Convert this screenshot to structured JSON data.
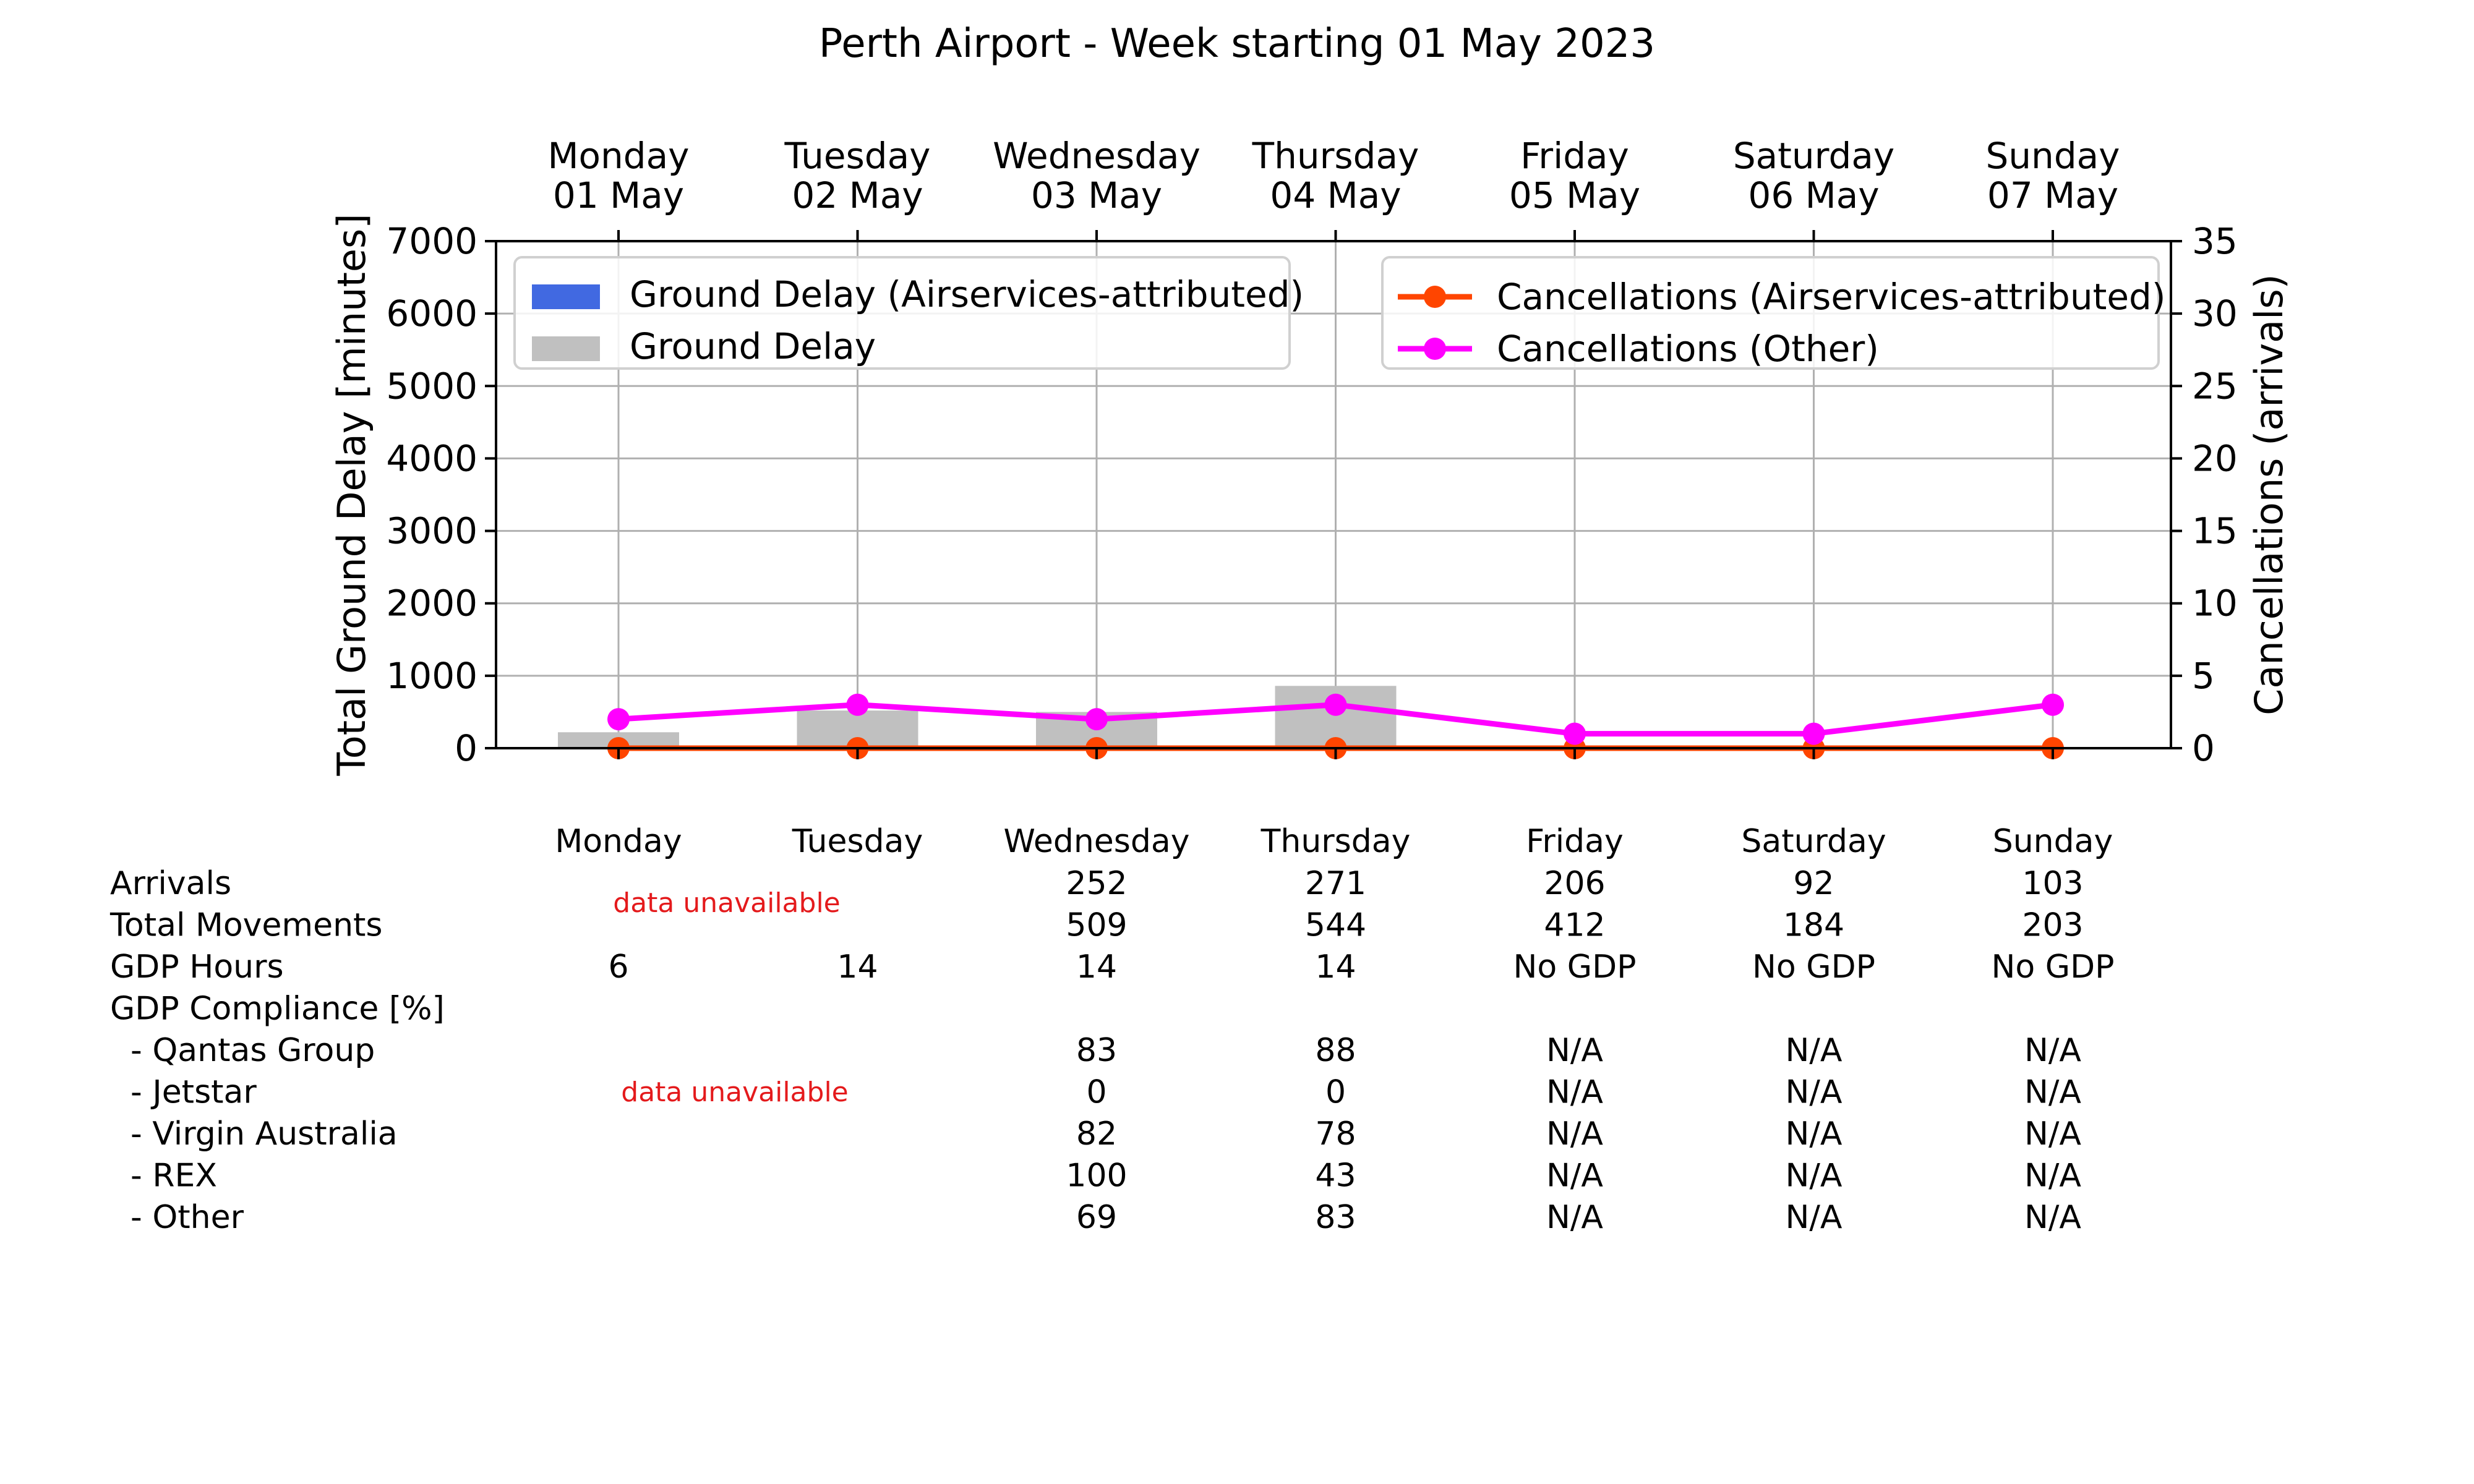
{
  "chart_data": {
    "type": "bar",
    "title": "Perth Airport - Week starting 01 May 2023",
    "categories": [
      "Monday\n01 May",
      "Tuesday\n02 May",
      "Wednesday\n03 May",
      "Thursday\n04 May",
      "Friday\n05 May",
      "Saturday\n06 May",
      "Sunday\n07 May"
    ],
    "ylabel": "Total Ground Delay [minutes]",
    "ylim": [
      0,
      7000
    ],
    "yticks": [
      0,
      1000,
      2000,
      3000,
      4000,
      5000,
      6000,
      7000
    ],
    "y2label": "Cancellations (arrivals)",
    "y2lim": [
      0,
      35
    ],
    "y2ticks": [
      0,
      5,
      10,
      15,
      20,
      25,
      30,
      35
    ],
    "grid": true,
    "series": [
      {
        "name": "Ground Delay (Airservices-attributed)",
        "kind": "bar",
        "axis": "left",
        "color": "#4169e1",
        "values": [
          0,
          0,
          0,
          0,
          0,
          0,
          0
        ]
      },
      {
        "name": "Ground Delay",
        "kind": "bar",
        "axis": "left",
        "color": "#c0c0c0",
        "values": [
          220,
          520,
          500,
          860,
          0,
          0,
          0
        ]
      },
      {
        "name": "Cancellations (Airservices-attributed)",
        "kind": "line",
        "axis": "right",
        "color": "#ff4500",
        "values": [
          0,
          0,
          0,
          0,
          0,
          0,
          0
        ]
      },
      {
        "name": "Cancellations (Other)",
        "kind": "line",
        "axis": "right",
        "color": "#ff00ff",
        "values": [
          2,
          3,
          2,
          3,
          1,
          1,
          3
        ]
      }
    ],
    "legends": {
      "left": "top-left",
      "right": "top-right"
    }
  },
  "table": {
    "days": [
      "Monday",
      "Tuesday",
      "Wednesday",
      "Thursday",
      "Friday",
      "Saturday",
      "Sunday"
    ],
    "rows": [
      {
        "label": "Arrivals",
        "cells": [
          "",
          "",
          "252",
          "271",
          "206",
          "92",
          "103"
        ]
      },
      {
        "label": "Total Movements",
        "cells": [
          "",
          "",
          "509",
          "544",
          "412",
          "184",
          "203"
        ]
      },
      {
        "label": "GDP Hours",
        "cells": [
          "6",
          "14",
          "14",
          "14",
          "No GDP",
          "No GDP",
          "No GDP"
        ]
      },
      {
        "label": "GDP Compliance [%]",
        "cells": [
          "",
          "",
          "",
          "",
          "",
          "",
          ""
        ]
      },
      {
        "label": "  - Qantas Group",
        "cells": [
          "",
          "",
          "83",
          "88",
          "N/A",
          "N/A",
          "N/A"
        ]
      },
      {
        "label": "  - Jetstar",
        "cells": [
          "",
          "",
          "0",
          "0",
          "N/A",
          "N/A",
          "N/A"
        ]
      },
      {
        "label": "  - Virgin Australia",
        "cells": [
          "",
          "",
          "82",
          "78",
          "N/A",
          "N/A",
          "N/A"
        ]
      },
      {
        "label": "  - REX",
        "cells": [
          "",
          "",
          "100",
          "43",
          "N/A",
          "N/A",
          "N/A"
        ]
      },
      {
        "label": "  - Other",
        "cells": [
          "",
          "",
          "69",
          "83",
          "N/A",
          "N/A",
          "N/A"
        ]
      }
    ],
    "unavailable_label": "data unavailable",
    "unavailable_color": "#e41a1c"
  }
}
